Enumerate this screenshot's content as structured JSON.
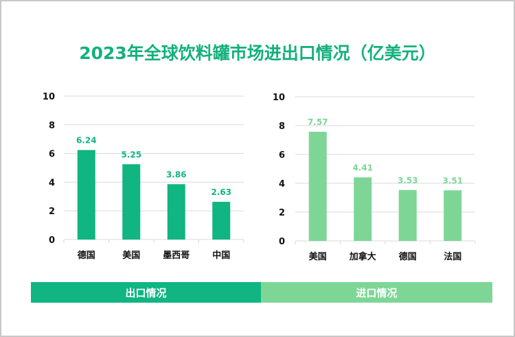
{
  "title": "2023年全球饮料罐市场进出口情况（亿美元）",
  "colors": {
    "export": "#10b581",
    "import": "#7dd696"
  },
  "chart_data": [
    {
      "type": "bar",
      "title": "出口情况",
      "categories": [
        "德国",
        "美国",
        "墨西哥",
        "中国"
      ],
      "values": [
        6.24,
        5.25,
        3.86,
        2.63
      ],
      "ylim": [
        0,
        10
      ],
      "yticks": [
        0,
        2,
        4,
        6,
        8,
        10
      ],
      "grid": true
    },
    {
      "type": "bar",
      "title": "进口情况",
      "categories": [
        "美国",
        "加拿大",
        "德国",
        "法国"
      ],
      "values": [
        7.57,
        4.41,
        3.53,
        3.51
      ],
      "ylim": [
        0,
        10
      ],
      "yticks": [
        0,
        2,
        4,
        6,
        8,
        10
      ],
      "grid": true
    }
  ]
}
